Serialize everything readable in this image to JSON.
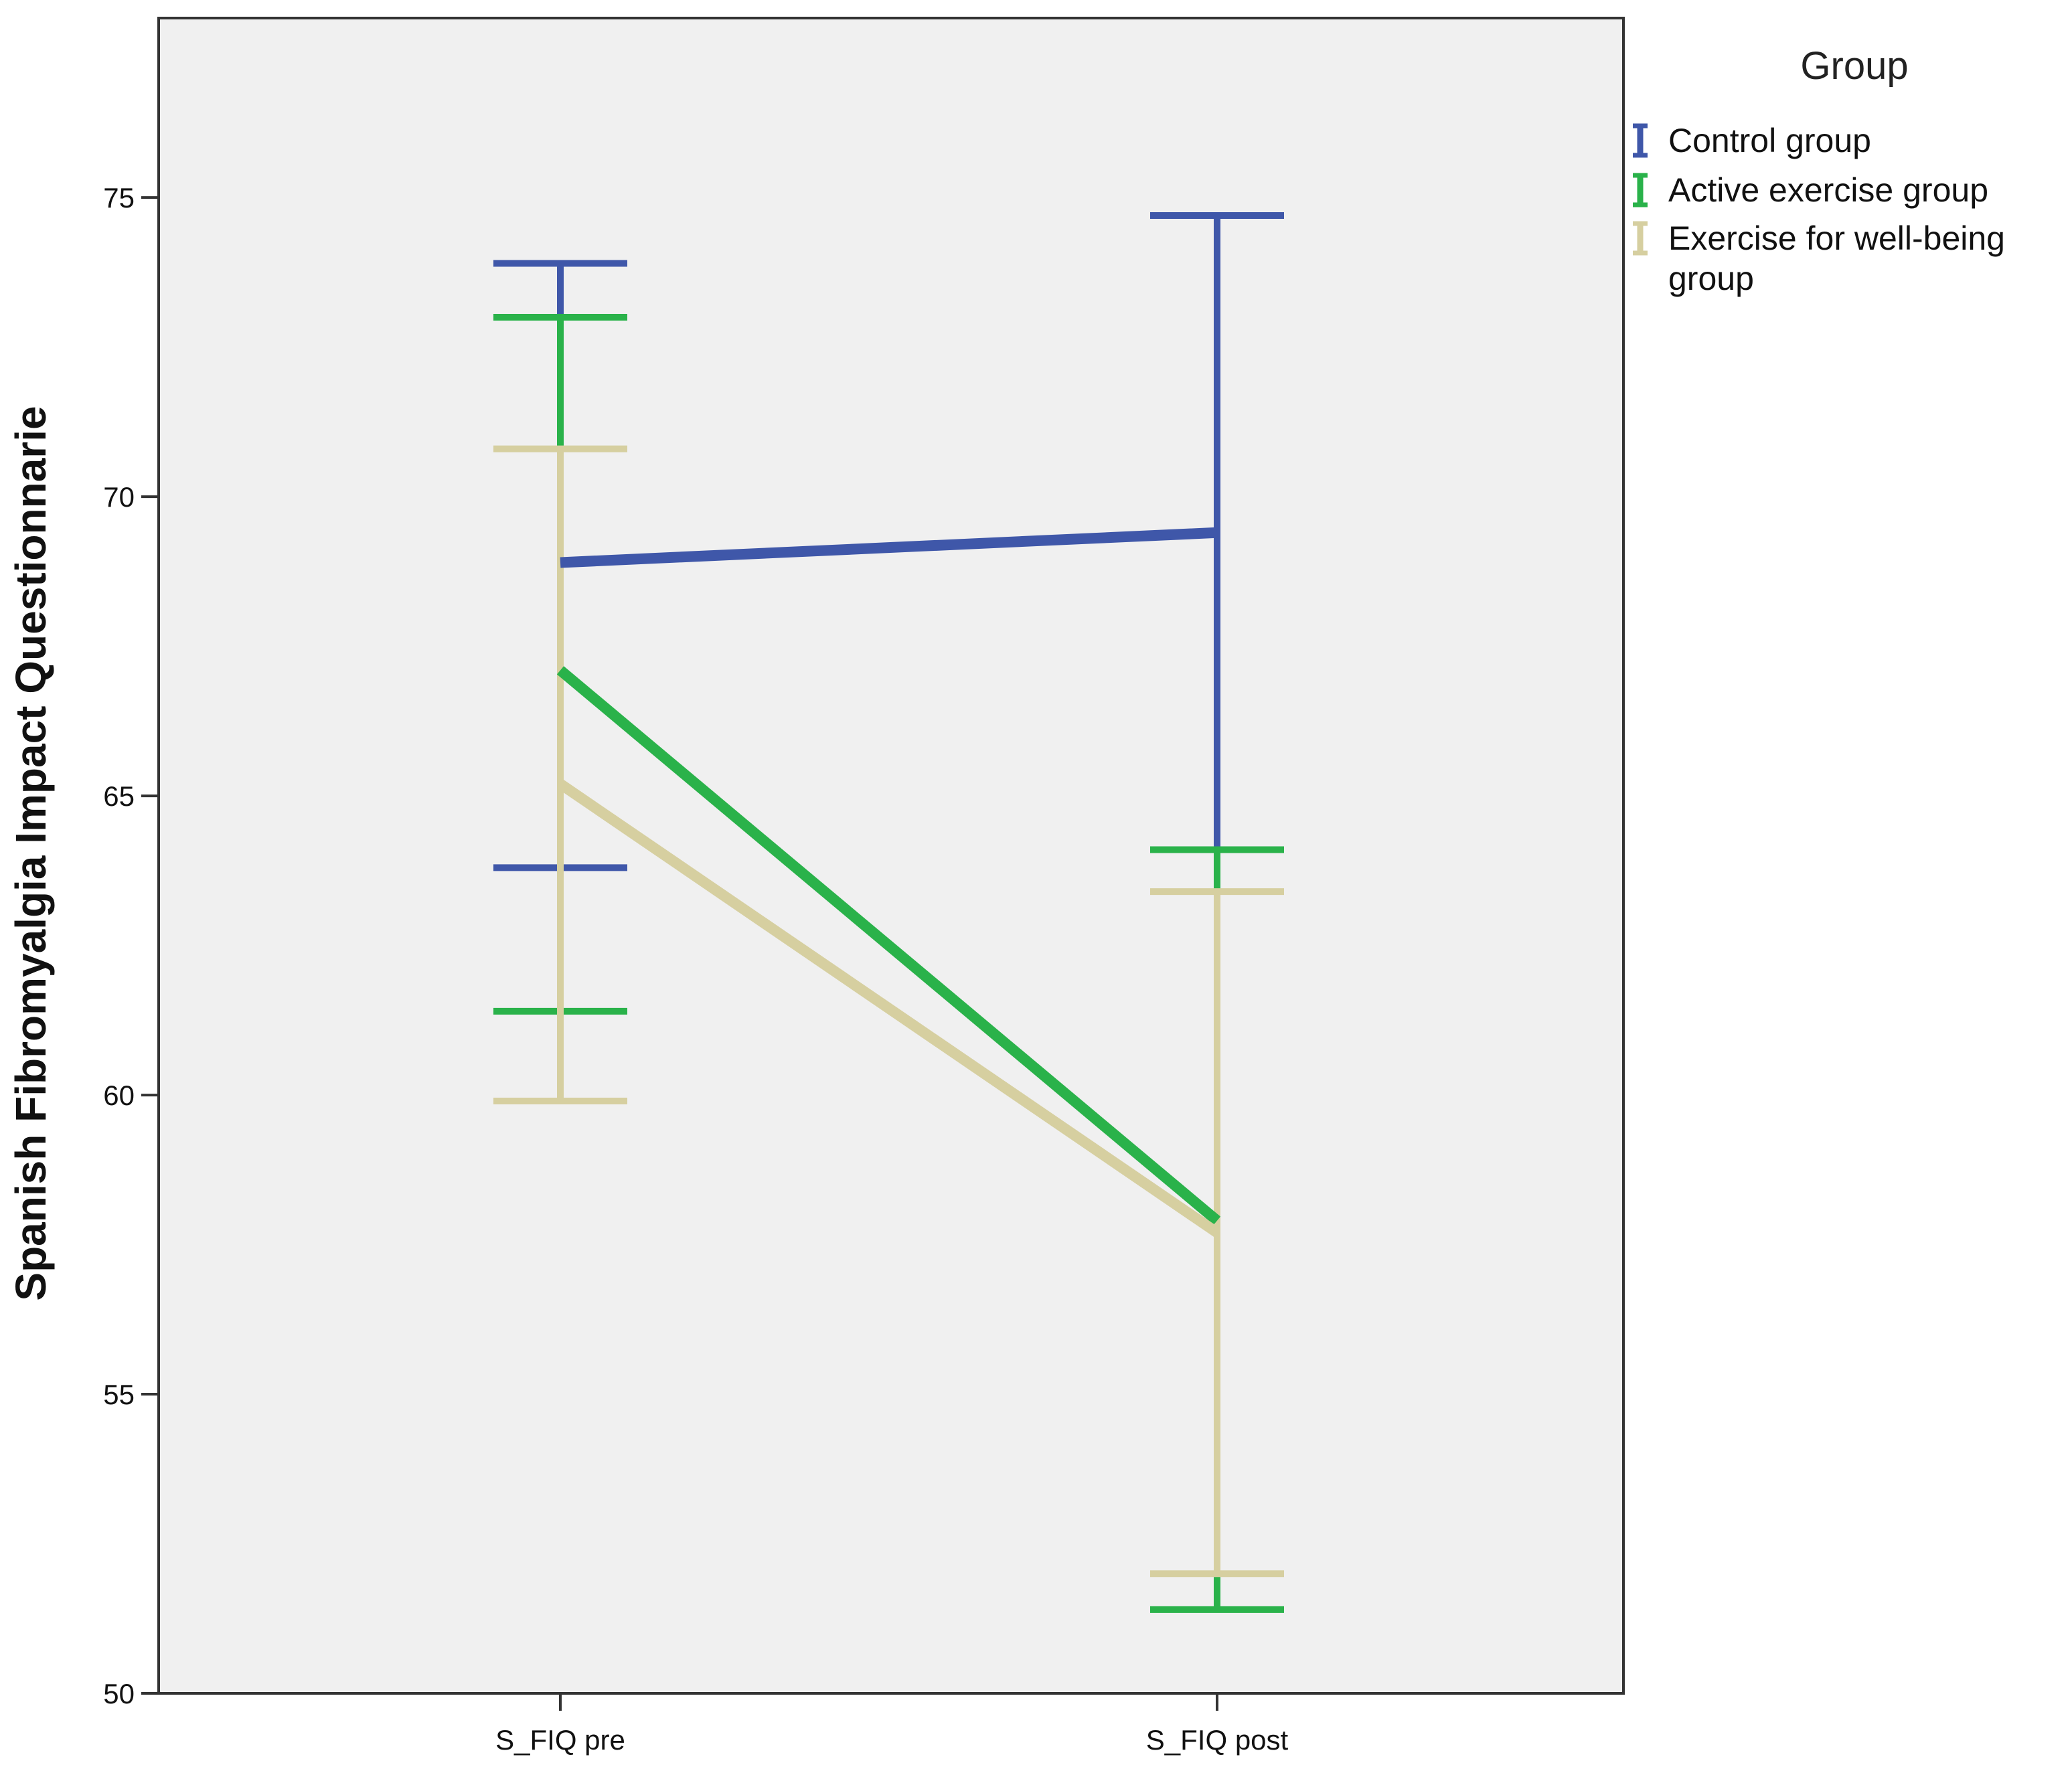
{
  "chart_data": {
    "type": "line",
    "title": "",
    "xlabel": "",
    "ylabel": "Spanish Fibromyalgia Impact Questionnarie",
    "categories": [
      "S_FIQ pre",
      "S_FIQ post"
    ],
    "ylim": [
      50,
      78
    ],
    "yticks": [
      50,
      55,
      60,
      65,
      70,
      75
    ],
    "error_bars": true,
    "grid": false,
    "legend": {
      "title": "Group",
      "position": "right",
      "entries": [
        "Control group",
        "Active exercise group",
        [
          "Exercise for well-being",
          "group"
        ]
      ]
    },
    "series": [
      {
        "name": "Control group",
        "color": "#3f57a9",
        "values": [
          68.9,
          69.4
        ],
        "lower": [
          63.8,
          64.1
        ],
        "upper": [
          73.9,
          74.7
        ]
      },
      {
        "name": "Active exercise group",
        "color": "#2ab24a",
        "values": [
          67.1,
          57.9
        ],
        "lower": [
          61.4,
          51.4
        ],
        "upper": [
          73.0,
          64.1
        ]
      },
      {
        "name": "Exercise for well-being group",
        "color": "#d6cfa0",
        "values": [
          65.2,
          57.7
        ],
        "lower": [
          59.9,
          52.0
        ],
        "upper": [
          70.8,
          63.4
        ]
      }
    ]
  }
}
